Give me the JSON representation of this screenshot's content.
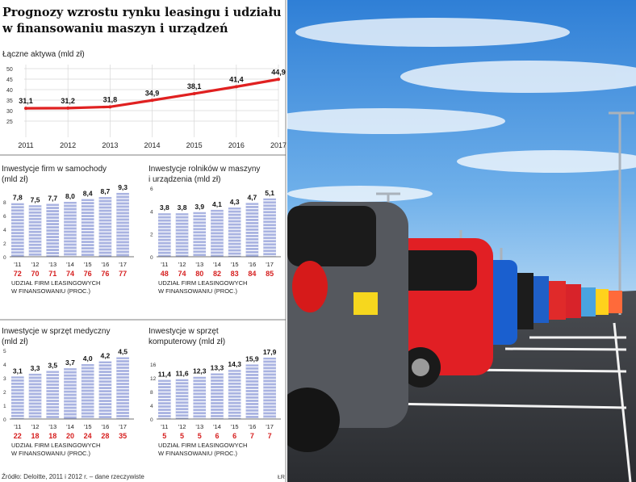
{
  "infographic": {
    "title_line1": "Prognozy wzrostu rynku leasingu i udziału",
    "title_line2": "w finansowaniu maszyn i urządzeń",
    "source": "Źródło: Deloitte, 2011 i 2012 r. – dane rzeczywiste",
    "credit": "ŁR"
  },
  "chart_data": [
    {
      "type": "line",
      "title": "Łączne aktywa (mld zł)",
      "x": [
        "2011",
        "2012",
        "2013",
        "2014",
        "2015",
        "2016",
        "2017"
      ],
      "values": [
        31.1,
        31.2,
        31.8,
        34.9,
        38.1,
        41.4,
        44.9
      ],
      "labels": [
        "31,1",
        "31,2",
        "31,8",
        "34,9",
        "38,1",
        "41,4",
        "44,9"
      ],
      "yticks": [
        "25",
        "30",
        "35",
        "40",
        "45",
        "50"
      ],
      "ylim": [
        25,
        50
      ],
      "color": "#e02020",
      "grid": true
    },
    {
      "type": "bar",
      "title_line1": "Inwestycje firm w samochody",
      "title_line2": "(mld zł)",
      "categories": [
        "'11",
        "'12",
        "'13",
        "'14",
        "'15",
        "'16",
        "'17"
      ],
      "values": [
        7.8,
        7.5,
        7.7,
        8.0,
        8.4,
        8.7,
        9.3
      ],
      "labels": [
        "7,8",
        "7,5",
        "7,7",
        "8,0",
        "8,4",
        "8,7",
        "9,3"
      ],
      "ylim": [
        0,
        10
      ],
      "yticks": [
        "0",
        "2",
        "4",
        "6",
        "8"
      ],
      "share_values": [
        "72",
        "70",
        "71",
        "74",
        "76",
        "76",
        "77"
      ],
      "share_label_line1": "UDZIAŁ FIRM LEASINGOWYCH",
      "share_label_line2": "W FINANSOWANIU (PROC.)",
      "bar_color": "#9aa6dc",
      "share_color": "#d62020"
    },
    {
      "type": "bar",
      "title_line1": "Inwestycje rolników w maszyny",
      "title_line2": "i urządzenia (mld zł)",
      "categories": [
        "'11",
        "'12",
        "'13",
        "'14",
        "'15",
        "'16",
        "'17"
      ],
      "values": [
        3.8,
        3.8,
        3.9,
        4.1,
        4.3,
        4.7,
        5.1
      ],
      "labels": [
        "3,8",
        "3,8",
        "3,9",
        "4,1",
        "4,3",
        "4,7",
        "5,1"
      ],
      "ylim": [
        0,
        6
      ],
      "yticks": [
        "0",
        "2",
        "4",
        "6"
      ],
      "share_values": [
        "48",
        "74",
        "80",
        "82",
        "83",
        "84",
        "85"
      ],
      "share_label_line1": "UDZIAŁ FIRM LEASINGOWYCH",
      "share_label_line2": "W FINANSOWANIU (PROC.)",
      "bar_color": "#9aa6dc",
      "share_color": "#d62020"
    },
    {
      "type": "bar",
      "title_line1": "Inwestycje w sprzęt medyczny",
      "title_line2": "(mld zł)",
      "categories": [
        "'11",
        "'12",
        "'13",
        "'14",
        "'15",
        "'16",
        "'17"
      ],
      "values": [
        3.1,
        3.3,
        3.5,
        3.7,
        4.0,
        4.2,
        4.5
      ],
      "labels": [
        "3,1",
        "3,3",
        "3,5",
        "3,7",
        "4,0",
        "4,2",
        "4,5"
      ],
      "ylim": [
        0,
        5
      ],
      "yticks": [
        "0",
        "1",
        "2",
        "3",
        "4",
        "5"
      ],
      "share_values": [
        "22",
        "18",
        "18",
        "20",
        "24",
        "28",
        "35"
      ],
      "share_label_line1": "UDZIAŁ FIRM LEASINGOWYCH",
      "share_label_line2": "W FINANSOWANIU (PROC.)",
      "bar_color": "#9aa6dc",
      "share_color": "#d62020"
    },
    {
      "type": "bar",
      "title_line1": "Inwestycje w sprzęt",
      "title_line2": "komputerowy (mld zł)",
      "categories": [
        "'11",
        "'12",
        "'13",
        "'14",
        "'15",
        "'16",
        "'17"
      ],
      "values": [
        11.4,
        11.6,
        12.3,
        13.3,
        14.3,
        15.9,
        17.9
      ],
      "labels": [
        "11,4",
        "11,6",
        "12,3",
        "13,3",
        "14,3",
        "15,9",
        "17,9"
      ],
      "ylim": [
        0,
        20
      ],
      "yticks": [
        "0",
        "4",
        "8",
        "12",
        "16"
      ],
      "share_values": [
        "5",
        "5",
        "5",
        "6",
        "6",
        "7",
        "7"
      ],
      "share_label_line1": "UDZIAŁ FIRM LEASINGOWYCH",
      "share_label_line2": "W FINANSOWANIU (PROC.)",
      "bar_color": "#9aa6dc",
      "share_color": "#d62020"
    }
  ]
}
